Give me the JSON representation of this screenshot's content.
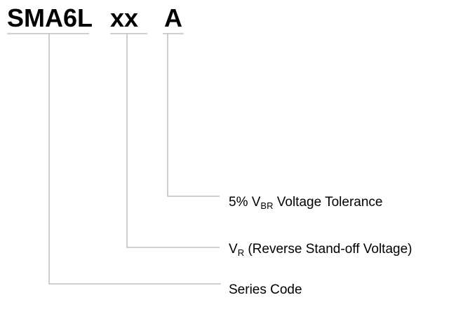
{
  "parts": [
    {
      "code": "SMA6L"
    },
    {
      "code": "xx"
    },
    {
      "code": "A"
    }
  ],
  "descriptions": [
    {
      "text": "5% V",
      "sub": "BR",
      "rest": " Voltage Tolerance"
    },
    {
      "text": "V",
      "sub": "R",
      "rest": " (Reverse Stand-off Voltage)"
    },
    {
      "text": "Series Code"
    }
  ]
}
